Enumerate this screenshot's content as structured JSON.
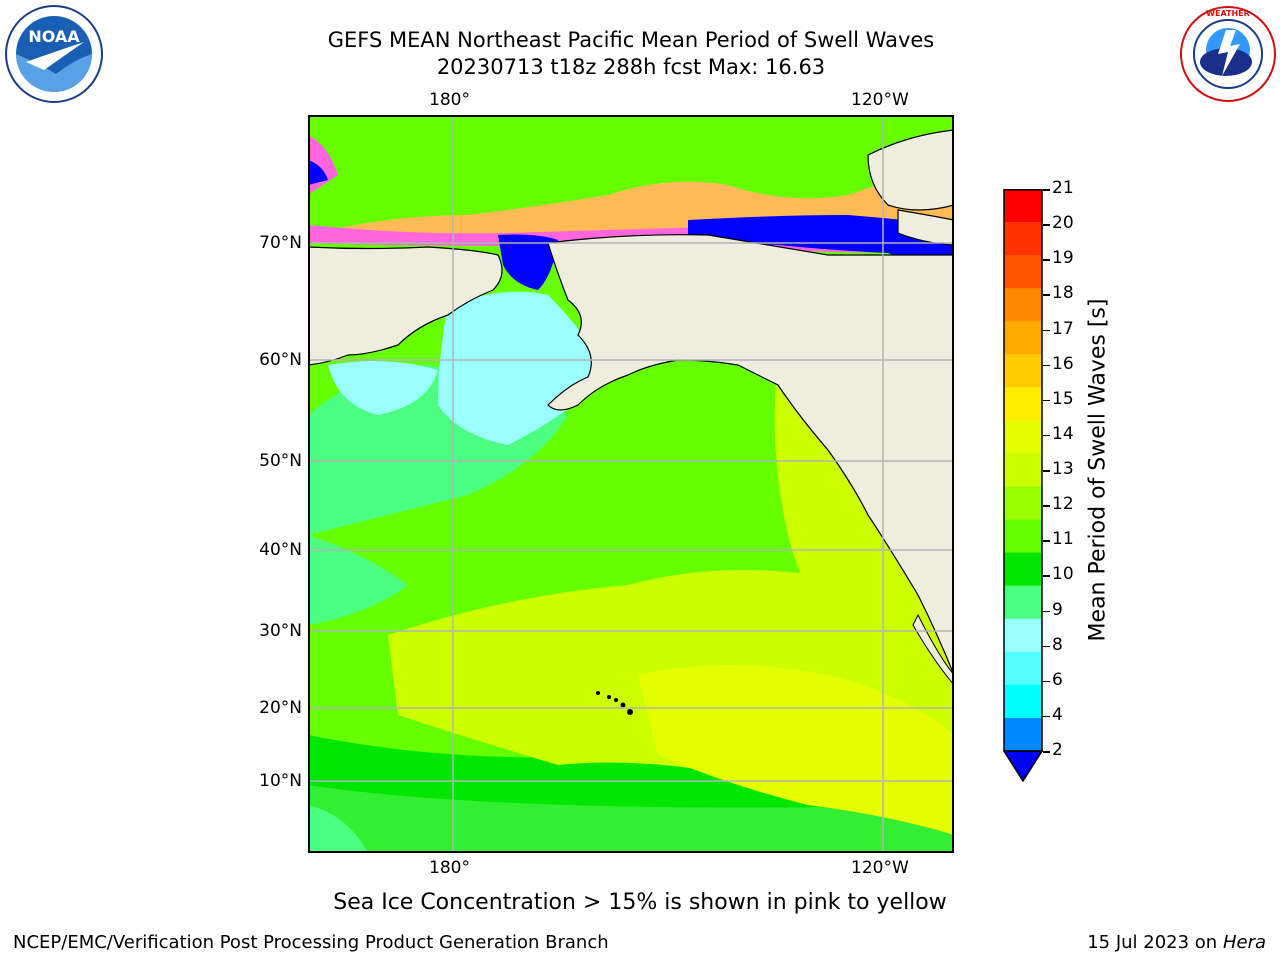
{
  "title": {
    "line1": "GEFS MEAN Northeast Pacific Mean Period of Swell Waves",
    "line2": "20230713 t18z 288h fcst   Max: 16.63"
  },
  "logos": {
    "left": "NOAA",
    "right": "NATIONAL WEATHER SERVICE"
  },
  "map": {
    "lon_labels_top": [
      "180°",
      "120°W"
    ],
    "lon_labels_bottom": [
      "180°",
      "120°W"
    ],
    "lat_labels": [
      "70°N",
      "60°N",
      "50°N",
      "40°N",
      "30°N",
      "20°N",
      "10°N"
    ],
    "colors": {
      "land": "#efedde",
      "coast": "#000000",
      "grid": "#b4b4b4",
      "ocean_main": "#66ff00",
      "ocean_green": "#00e600",
      "ocean_yellow": "#ccff00",
      "ocean_lightyellow": "#e6ff00",
      "ocean_teal": "#4dff80",
      "ocean_cyan": "#99ffff",
      "ice_orange": "#ffbb55",
      "ice_pink": "#ff66dd",
      "ice_blue": "#0000ff"
    }
  },
  "colorbar": {
    "label": "Mean Period of Swell Waves [s]",
    "ticks": [
      "21",
      "20",
      "19",
      "18",
      "17",
      "16",
      "15",
      "14",
      "13",
      "12",
      "11",
      "10",
      "9",
      "8",
      "6",
      "4",
      "2"
    ],
    "colors": [
      "#ff0000",
      "#ff3300",
      "#ff5500",
      "#ff8800",
      "#ffaa00",
      "#ffcc00",
      "#ffee00",
      "#e6ff00",
      "#ccff00",
      "#99ff00",
      "#66ff00",
      "#00e600",
      "#4dff80",
      "#99ffff",
      "#55ffff",
      "#00ffff",
      "#0088ff",
      "#0000ff"
    ]
  },
  "caption": "Sea Ice Concentration > 15% is shown in pink to yellow",
  "footer": {
    "left": "NCEP/EMC/Verification Post Processing Product Generation Branch",
    "right_prefix": "15 Jul 2023 on ",
    "right_host": "Hera"
  }
}
